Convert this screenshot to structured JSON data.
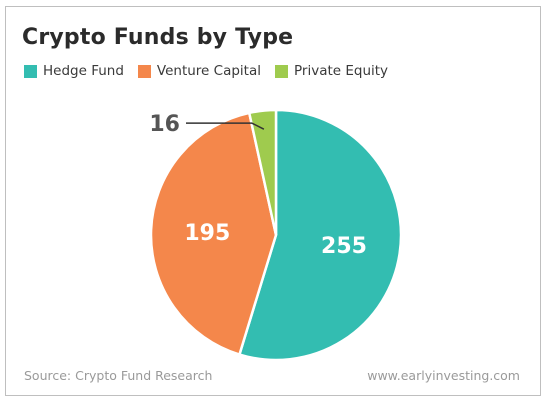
{
  "chart_data": {
    "type": "pie",
    "title": "Crypto Funds by Type",
    "series": [
      {
        "name": "Hedge Fund",
        "value": 255,
        "color": "#33bdb1"
      },
      {
        "name": "Venture Capital",
        "value": 195,
        "color": "#f4874b"
      },
      {
        "name": "Private Equity",
        "value": 16,
        "color": "#9fcb4e"
      }
    ],
    "legend_position": "top-left",
    "data_labels": [
      "255",
      "195",
      "16"
    ]
  },
  "footer": {
    "source": "Source: Crypto Fund Research",
    "website": "www.earlyinvesting.com"
  }
}
